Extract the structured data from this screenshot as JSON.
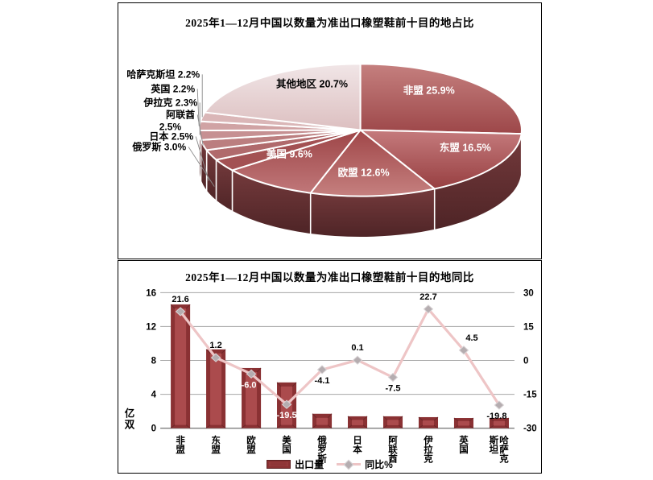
{
  "canvas": {
    "background": "#ffffff"
  },
  "chart_data": [
    {
      "type": "pie",
      "effect": "3d",
      "title": "2025年1—12月中国以数量为准出口橡塑鞋前十目的地占比",
      "unit": "%",
      "labels": [
        "非盟",
        "东盟",
        "欧盟",
        "美国",
        "俄罗斯",
        "日本",
        "阿联酋",
        "伊拉克",
        "英国",
        "哈萨克斯坦",
        "其他地区"
      ],
      "values": [
        25.9,
        16.5,
        12.6,
        9.6,
        3.0,
        2.5,
        2.5,
        2.3,
        2.2,
        2.2,
        20.7
      ],
      "label_placement": [
        "inside",
        "inside",
        "inside",
        "inside",
        "outside",
        "outside",
        "outside",
        "outside",
        "outside",
        "outside",
        "inside"
      ],
      "slice_colors": [
        [
          "#c5807f",
          "#9d4749"
        ],
        [
          "#c57b7d",
          "#973f41"
        ],
        [
          "#a04648",
          "#c5807f"
        ],
        [
          "#9d4547",
          "#c07779"
        ],
        [
          "#a35153",
          "#a35153"
        ],
        [
          "#b06a6c",
          "#b06a6c"
        ],
        [
          "#bb7e7f",
          "#bb7e7f"
        ],
        [
          "#c69092",
          "#c69092"
        ],
        [
          "#d0a3a4",
          "#d0a3a4"
        ],
        [
          "#dab6b7",
          "#dab6b7"
        ],
        [
          "#f1e6e7",
          "#dcbfc0"
        ]
      ],
      "rim_colors": [
        "#743a3c",
        "#4e2426"
      ]
    },
    {
      "type": "bar+line",
      "title": "2025年1—12月中国以数量为准出口橡塑鞋前十目的地同比",
      "categories": [
        "非盟",
        "东盟",
        "欧盟",
        "美国",
        "俄罗斯",
        "日本",
        "阿联酋",
        "伊拉克",
        "英国",
        "哈萨克斯坦"
      ],
      "series": [
        {
          "name": "出口量",
          "type": "bar",
          "axis": "left",
          "unit": "亿双",
          "values": [
            14.6,
            9.3,
            7.1,
            5.4,
            1.7,
            1.4,
            1.4,
            1.3,
            1.2,
            1.2
          ]
        },
        {
          "name": "同比%",
          "type": "line",
          "axis": "right",
          "unit": "%",
          "values": [
            21.6,
            1.2,
            -6.0,
            -19.5,
            -4.1,
            0.1,
            -7.5,
            22.7,
            4.5,
            -19.8
          ]
        }
      ],
      "left_axis": {
        "title": "亿双",
        "ticks": [
          0,
          4,
          8,
          12,
          16
        ],
        "range": [
          0,
          16
        ]
      },
      "right_axis": {
        "title": "",
        "ticks": [
          -30,
          -15,
          0,
          15,
          30
        ],
        "range": [
          -30,
          30
        ]
      },
      "grid": true,
      "legend_position": "bottom",
      "colors": {
        "bar": "#8a3133",
        "bar_inner": "#ab4b4d",
        "bar_bevel": "#6d282a",
        "line": "#eec5c6",
        "marker": "#b5adb0",
        "marker_edge": "#d9d4d6",
        "grid": "#a6a6a6",
        "axis": "#7f7f7f"
      }
    }
  ]
}
